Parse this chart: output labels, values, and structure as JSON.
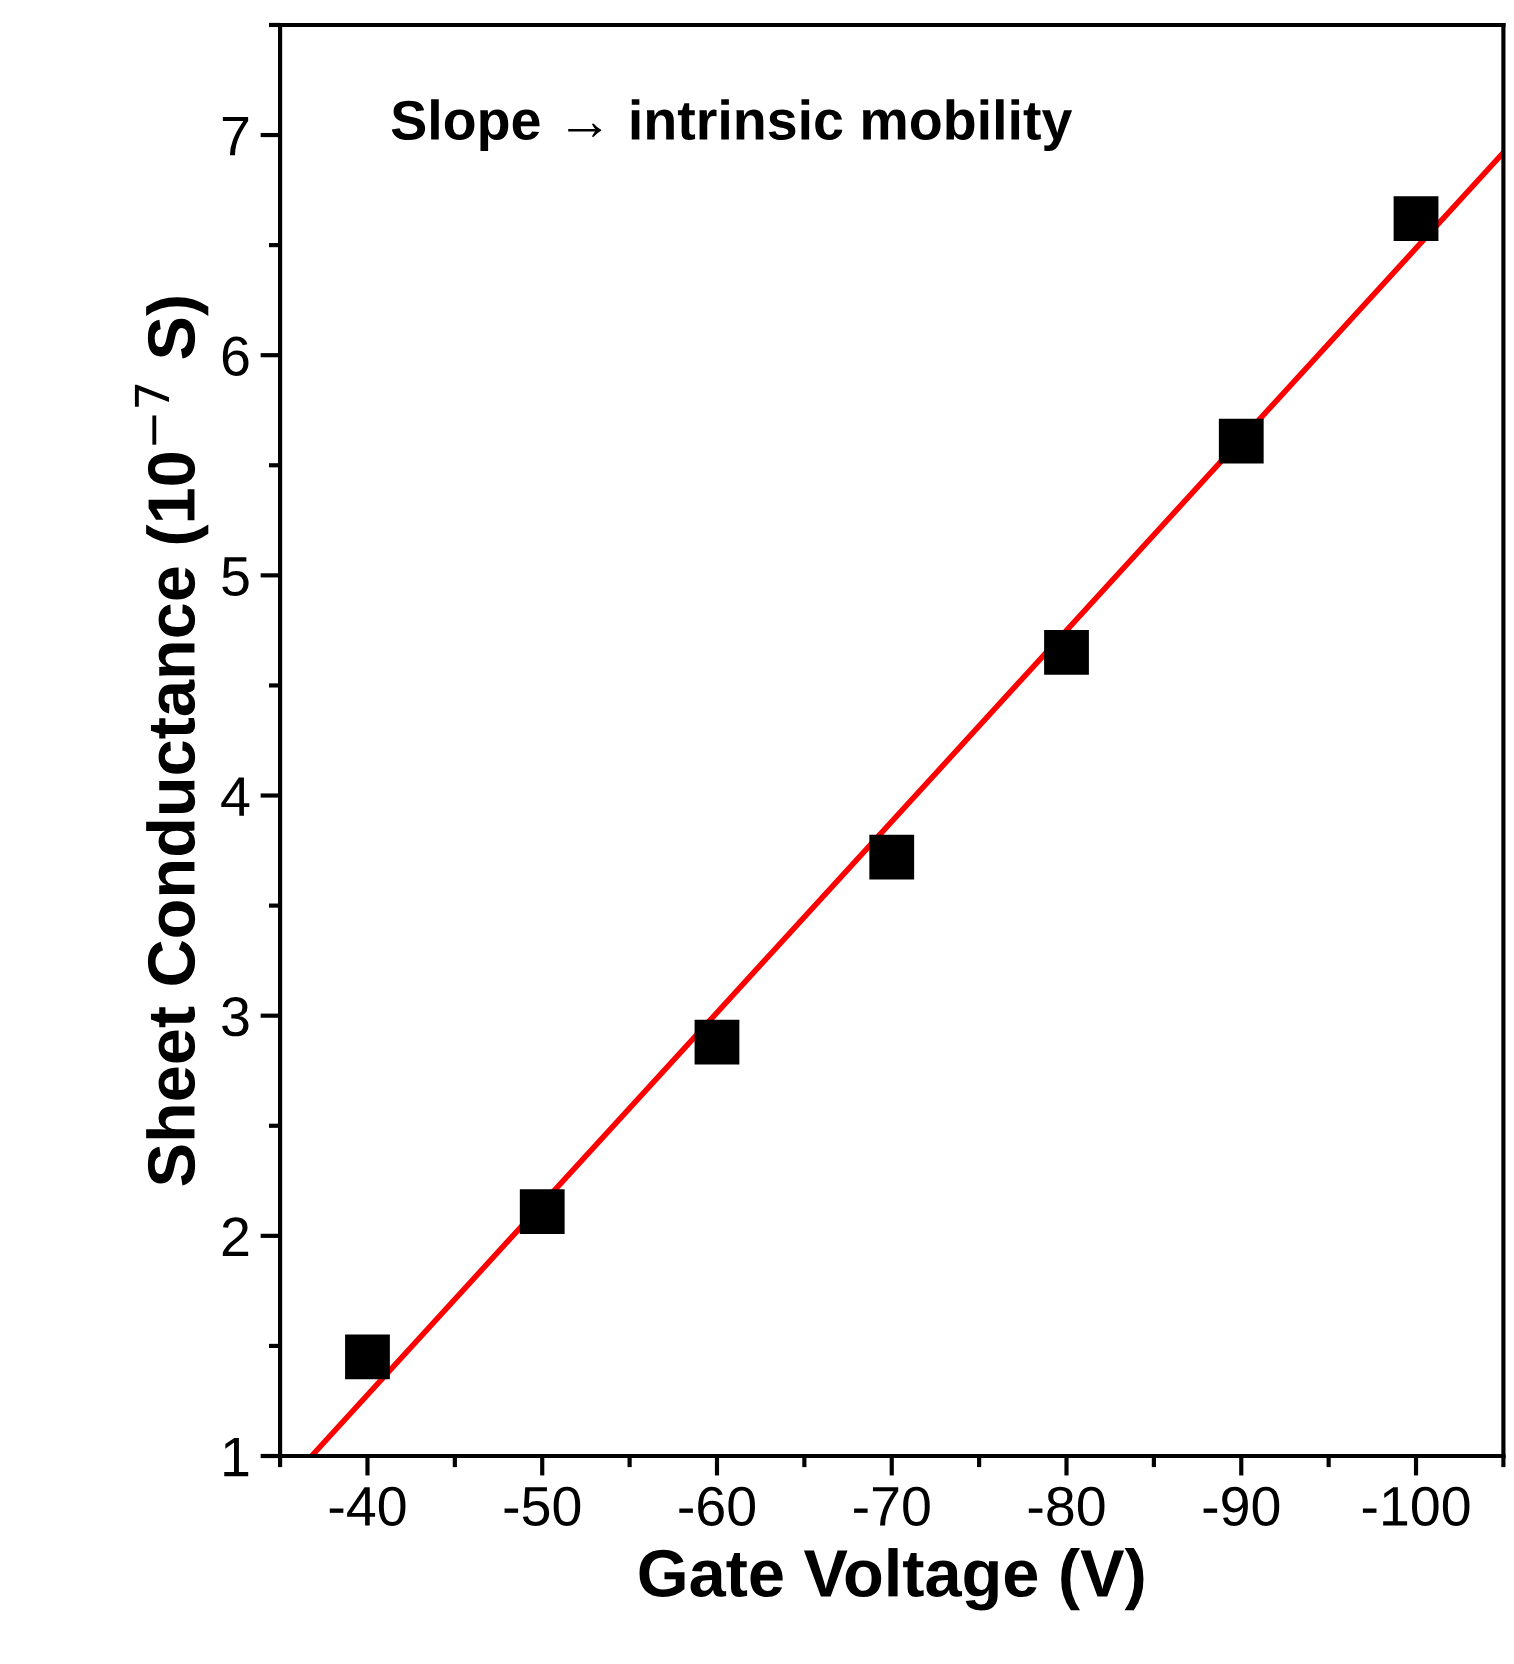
{
  "chart_data": {
    "type": "scatter",
    "xlabel": "Gate Voltage (V)",
    "ylabel": "Sheet Conductance (10$^{−7}$ S)",
    "annotations": [
      "Slope → intrinsic mobility"
    ],
    "x": [
      -40,
      -50,
      -60,
      -70,
      -80,
      -90,
      -100
    ],
    "series": [
      {
        "color": "#000000",
        "marker": "square",
        "values": [
          1.45,
          2.11,
          2.88,
          3.72,
          4.65,
          5.61,
          6.62
        ]
      },
      {
        "type": "line",
        "color": "#ff0000",
        "line_style": "solid",
        "marker": "none",
        "x": [
          -36.8,
          -105
        ],
        "values": [
          1.0,
          6.92
        ]
      }
    ],
    "xlim": [
      -35,
      -105
    ],
    "xticks": [
      -40,
      -50,
      -60,
      -70,
      -80,
      -90,
      -100
    ],
    "ylim": [
      1,
      7.5
    ],
    "yticks": [
      1,
      2,
      3,
      4,
      5,
      6,
      7
    ],
    "grid": false,
    "legend": false
  }
}
